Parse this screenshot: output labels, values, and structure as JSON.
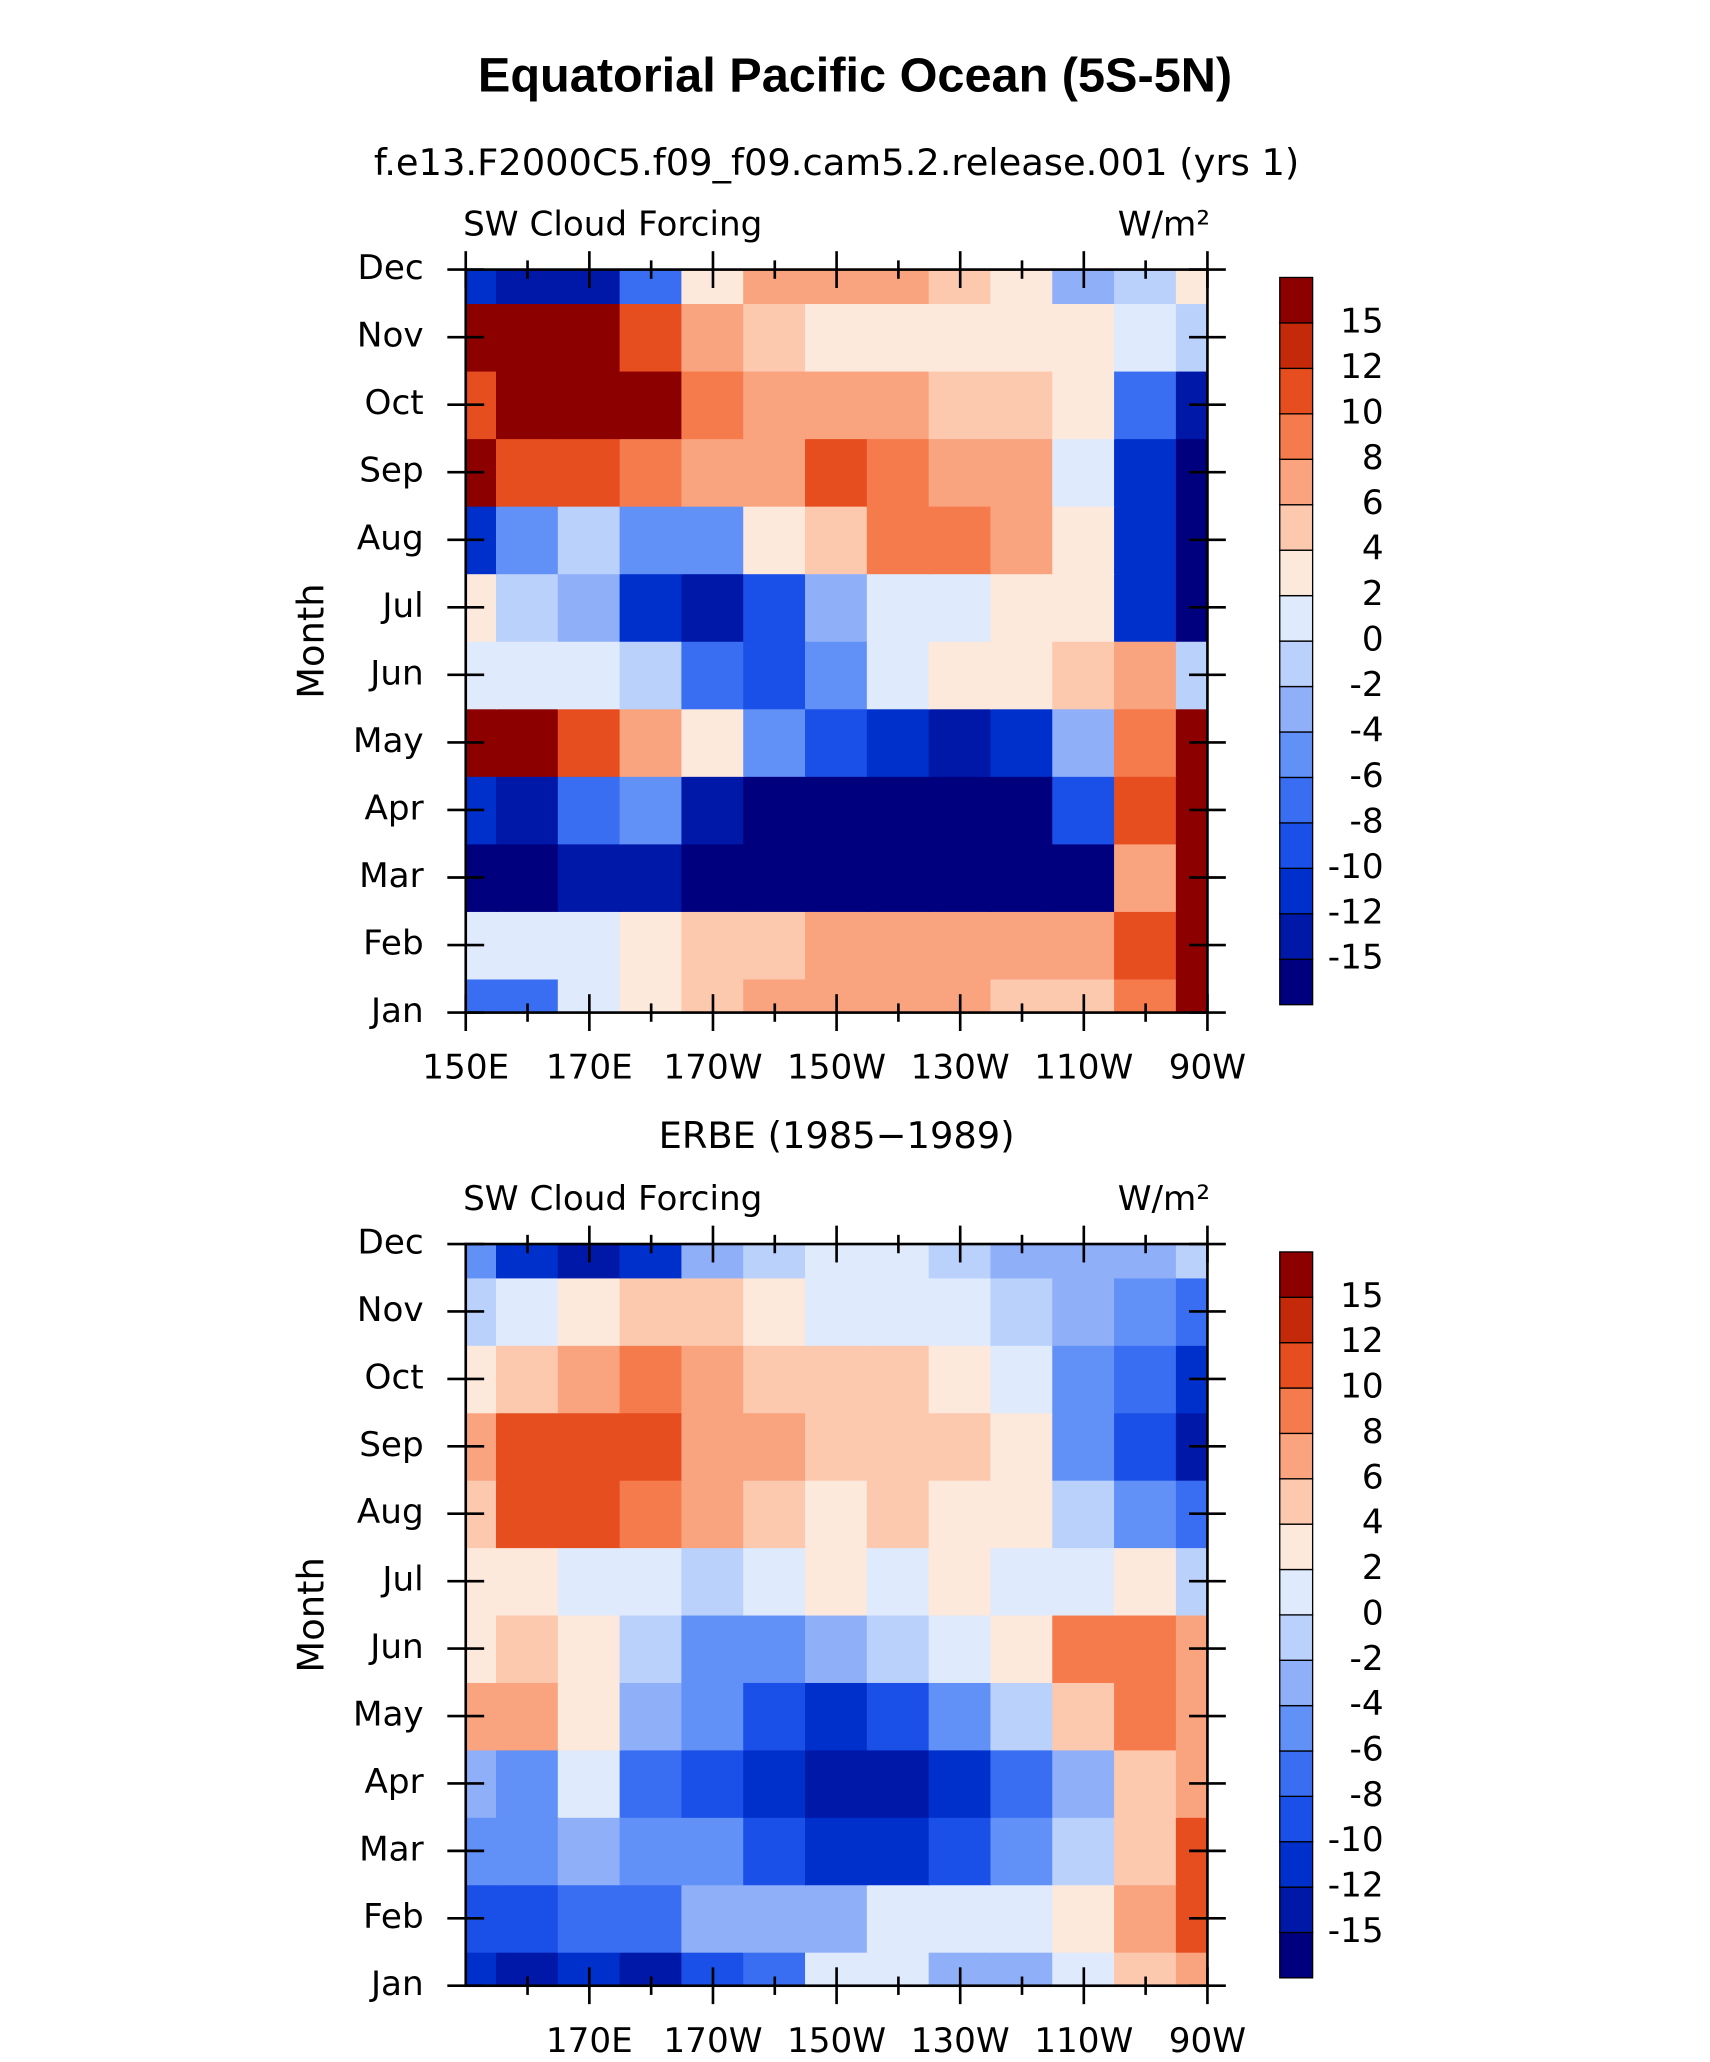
{
  "title": "Equatorial Pacific Ocean (5S-5N)",
  "chart_data": [
    {
      "type": "contour",
      "subtitle": "f.e13.F2000C5.f09_f09.cam5.2.release.001 (yrs 1)",
      "left_label": "SW Cloud Forcing",
      "right_label": "W/m²",
      "ylabel": "Month",
      "categories": [
        "Jan",
        "Feb",
        "Mar",
        "Apr",
        "May",
        "Jun",
        "Jul",
        "Aug",
        "Sep",
        "Oct",
        "Nov",
        "Dec"
      ],
      "x": [
        150,
        160,
        170,
        180,
        190,
        200,
        210,
        220,
        230,
        240,
        250,
        260,
        270
      ],
      "xlim": [
        150,
        270
      ],
      "xticks": [
        {
          "value": 150,
          "label": "150E"
        },
        {
          "value": 170,
          "label": "170E"
        },
        {
          "value": 190,
          "label": "170W"
        },
        {
          "value": 210,
          "label": "150W"
        },
        {
          "value": 230,
          "label": "130W"
        },
        {
          "value": 250,
          "label": "110W"
        },
        {
          "value": 270,
          "label": "90W"
        }
      ],
      "xminorticks": [
        160,
        180,
        200,
        220,
        240,
        260
      ],
      "levels": [
        -15,
        -12,
        -10,
        -8,
        -6,
        -4,
        -2,
        0,
        2,
        4,
        6,
        8,
        10,
        12,
        15
      ],
      "colors": [
        "#00007f",
        "#0018a8",
        "#0030cc",
        "#1a4fe8",
        "#3a6ef2",
        "#6190f6",
        "#8fb0f8",
        "#bad1fb",
        "#dfeafc",
        "#fde8dc",
        "#fcc8ae",
        "#faa37f",
        "#f57a4c",
        "#e64d1f",
        "#c42a0a",
        "#8c0000"
      ],
      "values": [
        [
          -6,
          -6,
          2,
          4,
          6,
          8,
          8,
          8,
          8,
          6,
          6,
          10,
          16
        ],
        [
          2,
          2,
          2,
          4,
          6,
          6,
          8,
          8,
          8,
          8,
          8,
          12,
          16
        ],
        [
          -16,
          -16,
          -12,
          -12,
          -16,
          -16,
          -16,
          -16,
          -16,
          -16,
          -16,
          8,
          16
        ],
        [
          -10,
          -12,
          -6,
          -4,
          -12,
          -16,
          -16,
          -16,
          -16,
          -16,
          -8,
          12,
          16
        ],
        [
          16,
          16,
          12,
          8,
          4,
          -4,
          -8,
          -10,
          -12,
          -10,
          -2,
          10,
          16
        ],
        [
          2,
          2,
          2,
          0,
          -6,
          -8,
          -4,
          2,
          4,
          4,
          6,
          8,
          0
        ],
        [
          4,
          0,
          -2,
          -10,
          -12,
          -8,
          -2,
          2,
          2,
          4,
          4,
          -10,
          -16
        ],
        [
          -10,
          -4,
          0,
          -4,
          -4,
          4,
          6,
          10,
          10,
          8,
          4,
          -10,
          -16
        ],
        [
          16,
          12,
          12,
          10,
          8,
          8,
          12,
          10,
          8,
          8,
          2,
          -10,
          -16
        ],
        [
          12,
          16,
          16,
          16,
          10,
          8,
          8,
          8,
          6,
          6,
          4,
          -6,
          -12
        ],
        [
          16,
          16,
          16,
          12,
          8,
          6,
          4,
          4,
          4,
          4,
          4,
          2,
          0
        ],
        [
          -10,
          -12,
          -12,
          -6,
          4,
          8,
          8,
          8,
          6,
          4,
          -2,
          0,
          4
        ]
      ]
    },
    {
      "type": "contour",
      "subtitle": "ERBE (1985−1989)",
      "left_label": "SW Cloud Forcing",
      "right_label": "W/m²",
      "ylabel": "Month",
      "categories": [
        "Jan",
        "Feb",
        "Mar",
        "Apr",
        "May",
        "Jun",
        "Jul",
        "Aug",
        "Sep",
        "Oct",
        "Nov",
        "Dec"
      ],
      "x": [
        150,
        160,
        170,
        180,
        190,
        200,
        210,
        220,
        230,
        240,
        250,
        260,
        270
      ],
      "xlim": [
        150,
        270
      ],
      "xticks": [
        {
          "value": 170,
          "label": "170E"
        },
        {
          "value": 190,
          "label": "170W"
        },
        {
          "value": 210,
          "label": "150W"
        },
        {
          "value": 230,
          "label": "130W"
        },
        {
          "value": 250,
          "label": "110W"
        },
        {
          "value": 270,
          "label": "90W"
        }
      ],
      "xminorticks": [
        160,
        180,
        200,
        220,
        240,
        260
      ],
      "levels": [
        -15,
        -12,
        -10,
        -8,
        -6,
        -4,
        -2,
        0,
        2,
        4,
        6,
        8,
        10,
        12,
        15
      ],
      "colors": [
        "#00007f",
        "#0018a8",
        "#0030cc",
        "#1a4fe8",
        "#3a6ef2",
        "#6190f6",
        "#8fb0f8",
        "#bad1fb",
        "#dfeafc",
        "#fde8dc",
        "#fcc8ae",
        "#faa37f",
        "#f57a4c",
        "#e64d1f",
        "#c42a0a",
        "#8c0000"
      ],
      "values": [
        [
          -10,
          -12,
          -10,
          -12,
          -8,
          -6,
          2,
          2,
          -2,
          -2,
          2,
          6,
          8
        ],
        [
          -8,
          -8,
          -6,
          -6,
          -2,
          -2,
          -2,
          2,
          2,
          2,
          4,
          8,
          12
        ],
        [
          -4,
          -4,
          -2,
          -4,
          -4,
          -8,
          -10,
          -10,
          -8,
          -4,
          0,
          6,
          12
        ],
        [
          -2,
          -4,
          2,
          -6,
          -8,
          -10,
          -12,
          -12,
          -10,
          -6,
          -2,
          6,
          8
        ],
        [
          8,
          8,
          4,
          -2,
          -4,
          -8,
          -10,
          -8,
          -4,
          0,
          6,
          10,
          8
        ],
        [
          4,
          6,
          4,
          0,
          -4,
          -4,
          -2,
          0,
          2,
          4,
          10,
          10,
          8
        ],
        [
          4,
          4,
          2,
          2,
          0,
          2,
          4,
          2,
          4,
          2,
          2,
          4,
          0
        ],
        [
          6,
          12,
          12,
          10,
          8,
          6,
          4,
          6,
          4,
          4,
          0,
          -4,
          -6
        ],
        [
          8,
          12,
          12,
          12,
          8,
          8,
          6,
          6,
          6,
          4,
          -4,
          -8,
          -12
        ],
        [
          4,
          6,
          8,
          10,
          8,
          6,
          6,
          6,
          4,
          2,
          -4,
          -6,
          -10
        ],
        [
          0,
          2,
          4,
          6,
          6,
          4,
          2,
          2,
          2,
          0,
          -2,
          -4,
          -6
        ],
        [
          -4,
          -10,
          -12,
          -10,
          -2,
          0,
          2,
          2,
          0,
          -2,
          -2,
          -2,
          0
        ]
      ]
    }
  ]
}
